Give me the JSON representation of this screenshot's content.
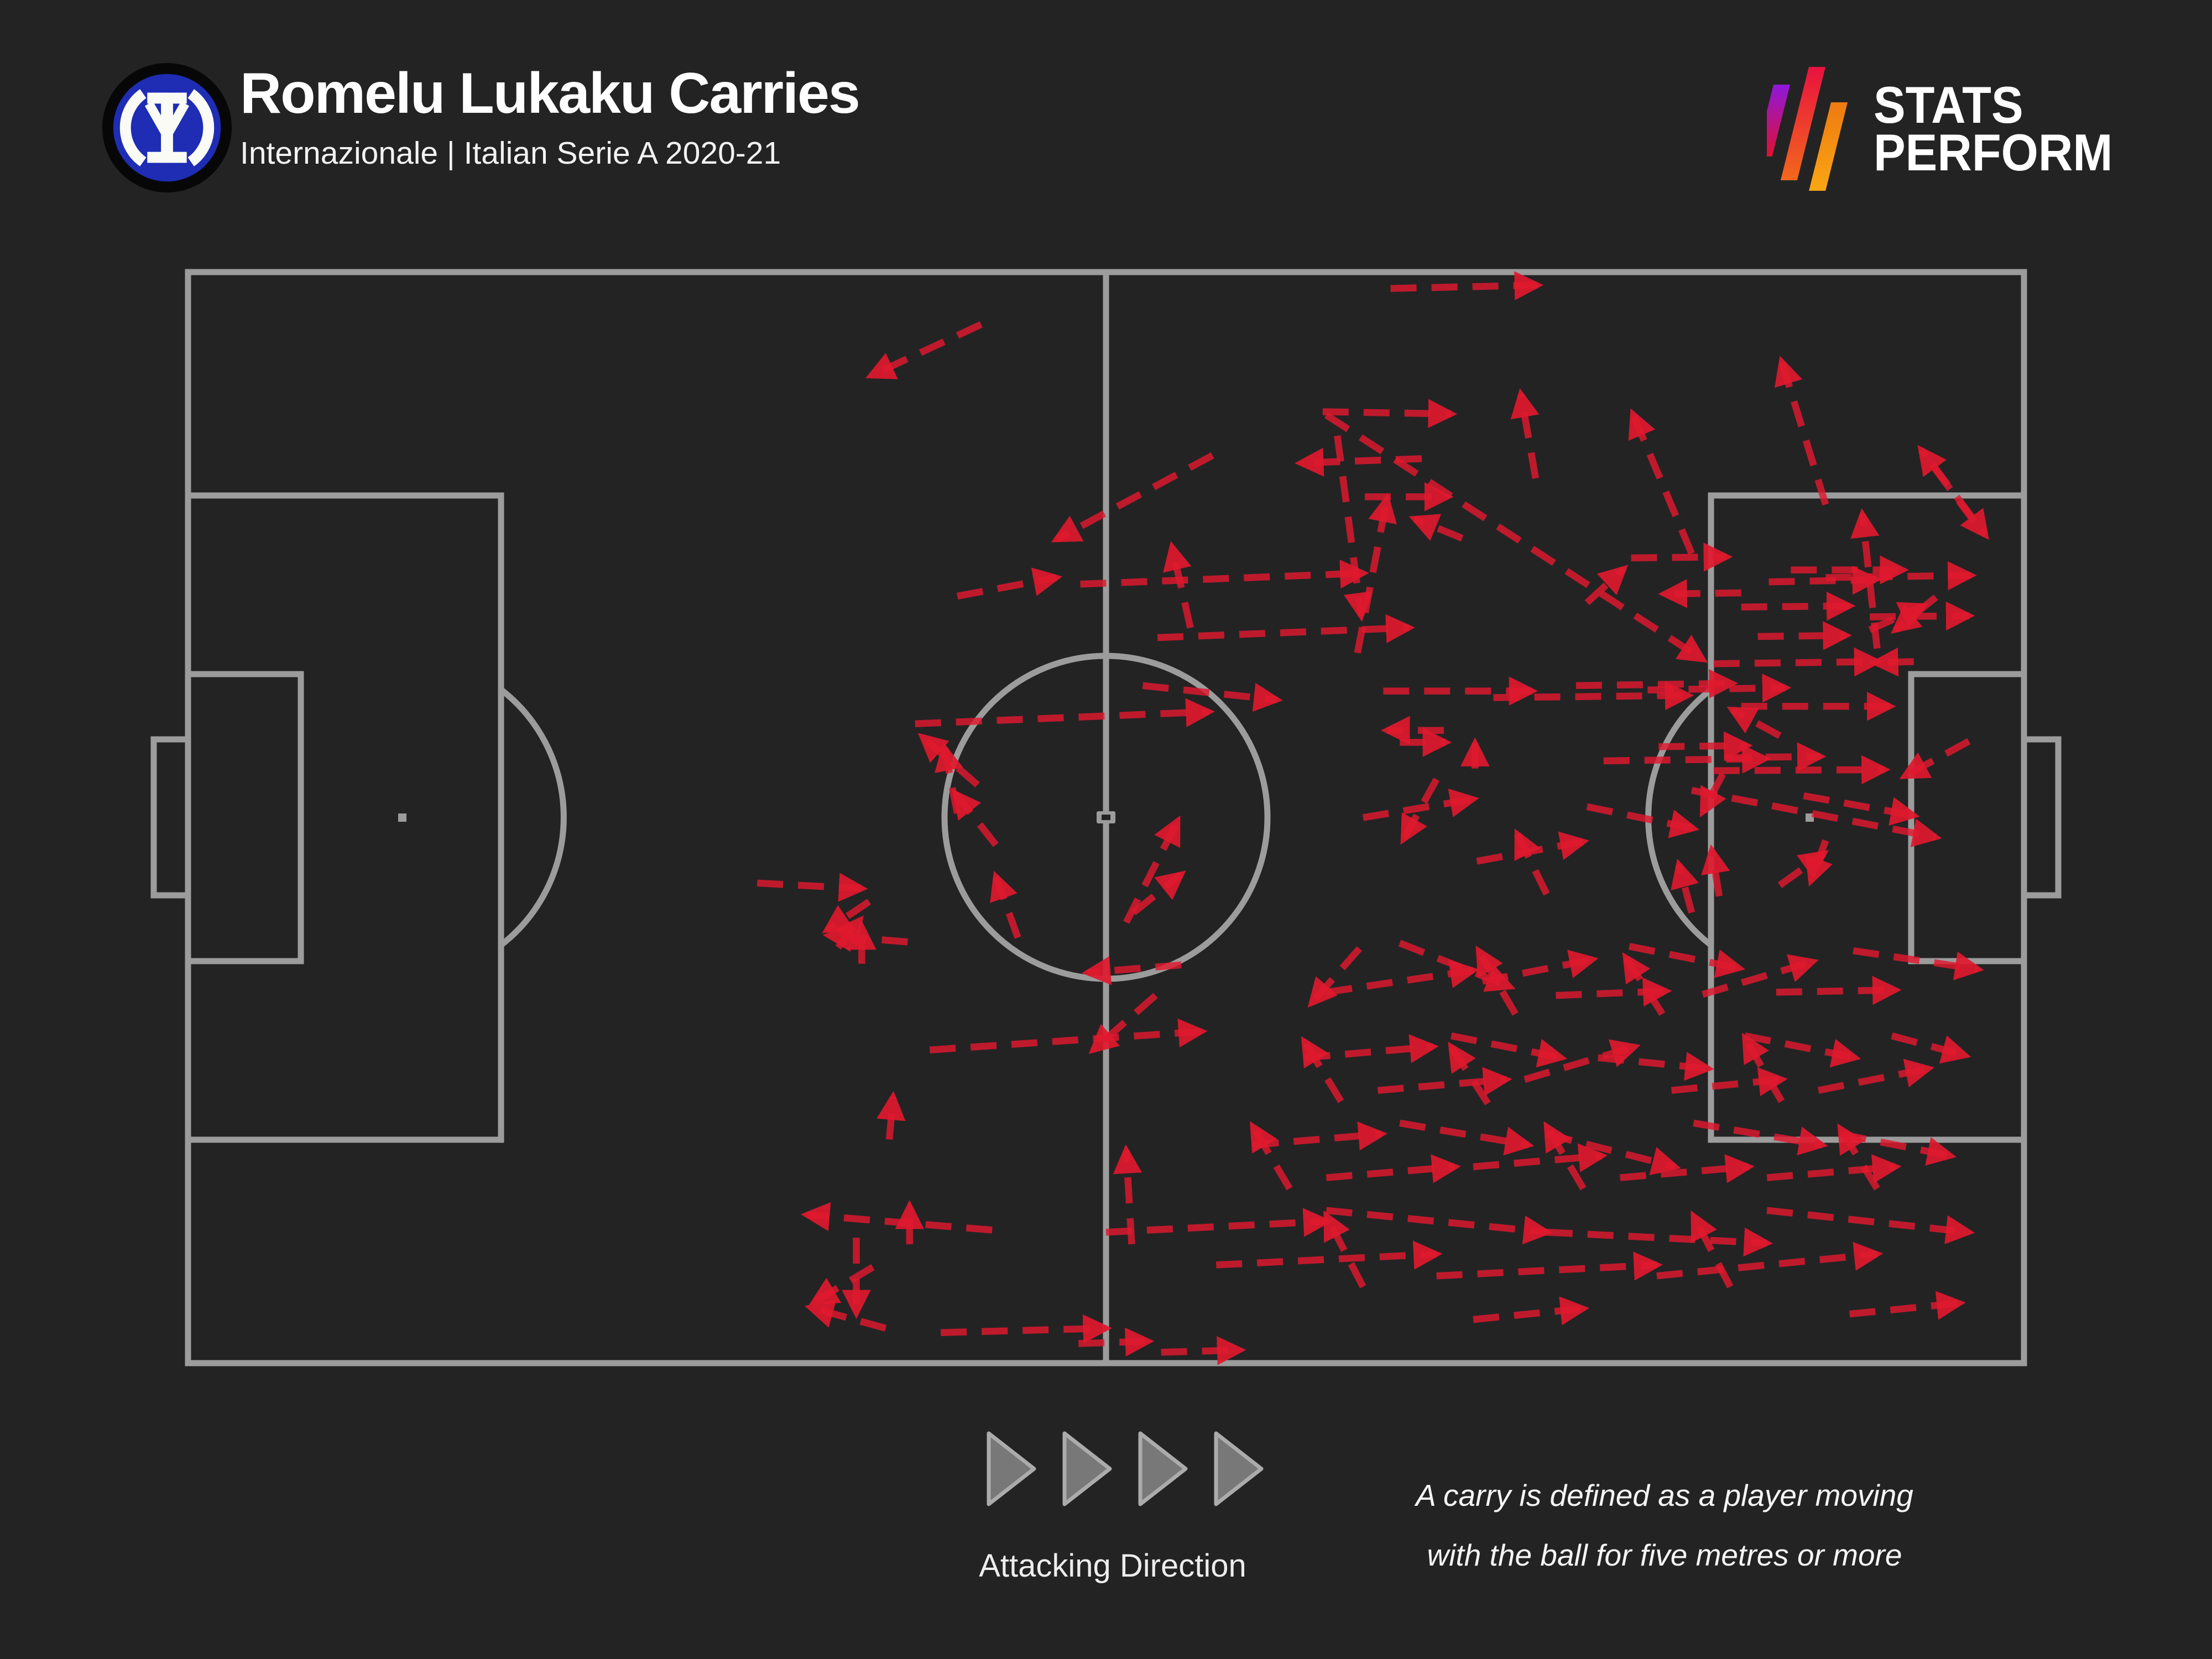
{
  "header": {
    "title": "Romelu Lukaku Carries",
    "subtitle": "Internazionale | Italian Serie A 2020-21"
  },
  "brand": {
    "line1": "STATS",
    "line2": "PERFORM"
  },
  "footer": {
    "legend_label": "Attacking Direction",
    "note_line1": "A carry is defined as a player moving",
    "note_line2": "with the ball for five metres or more"
  },
  "chart_data": {
    "type": "scatter",
    "variant": "football-pitch-carry-map",
    "title": "Romelu Lukaku Carries",
    "subtitle": "Internazionale | Italian Serie A 2020-21",
    "attacking_direction": "left-to-right",
    "definition": "A carry is defined as a player moving with the ball for five metres or more",
    "axis_note": "carries given as [x1,y1,x2,y2] in % of pitch; x:0 own goal line to 100 opposition goal line, y:0 top touchline to 100 bottom touchline, arrowhead at x2,y2",
    "colors": {
      "carry": "#e0192e",
      "pitch_line": "#9c9c9c",
      "background": "#232324",
      "legend_triangle": "#7d7d7d",
      "legend_triangle_border": "#ababab",
      "text": "#ffffff"
    },
    "carries": [
      [
        43.2,
        4.8,
        37.2,
        9.5
      ],
      [
        65.5,
        1.5,
        73.5,
        1.2
      ],
      [
        55.8,
        16.8,
        47.3,
        24.5
      ],
      [
        41.9,
        29.7,
        47.3,
        28.0
      ],
      [
        48.6,
        28.6,
        64.0,
        27.6
      ],
      [
        54.6,
        32.6,
        53.6,
        25.2
      ],
      [
        52.8,
        33.5,
        66.5,
        32.6
      ],
      [
        43.0,
        47.0,
        40.0,
        42.6
      ],
      [
        41.9,
        49.6,
        41.2,
        43.6
      ],
      [
        52.0,
        37.9,
        59.3,
        39.2
      ],
      [
        39.6,
        41.4,
        55.6,
        40.3
      ],
      [
        31.0,
        56.0,
        36.7,
        56.5
      ],
      [
        37.1,
        57.7,
        34.8,
        60.3
      ],
      [
        35.4,
        61.9,
        36.6,
        59.4
      ],
      [
        36.4,
        88.5,
        36.4,
        95.4
      ],
      [
        37.3,
        91.2,
        34.1,
        94.4
      ],
      [
        39.2,
        61.4,
        34.9,
        60.8
      ],
      [
        36.7,
        63.4,
        36.7,
        60.0
      ],
      [
        38.2,
        79.5,
        38.4,
        75.6
      ],
      [
        39.3,
        89.1,
        39.3,
        85.6
      ],
      [
        43.8,
        87.8,
        33.7,
        86.4
      ],
      [
        40.4,
        71.3,
        55.2,
        69.6
      ],
      [
        54.1,
        63.5,
        49.0,
        64.2
      ],
      [
        51.1,
        59.6,
        53.9,
        50.3
      ],
      [
        51.4,
        89.1,
        51.1,
        80.5
      ],
      [
        41.0,
        97.2,
        50.0,
        96.8
      ],
      [
        48.5,
        98.2,
        52.3,
        98.0
      ],
      [
        53.0,
        99.0,
        57.3,
        98.8
      ],
      [
        52.7,
        66.3,
        49.3,
        71.3
      ],
      [
        51.5,
        58.7,
        54.1,
        55.2
      ],
      [
        44.0,
        52.5,
        41.8,
        47.8
      ],
      [
        45.2,
        61.0,
        44.0,
        55.4
      ],
      [
        38.0,
        96.8,
        33.9,
        94.9
      ],
      [
        61.8,
        12.8,
        68.8,
        13.0
      ],
      [
        67.2,
        17.1,
        60.6,
        17.5
      ],
      [
        89.2,
        21.3,
        86.8,
        8.2
      ],
      [
        73.4,
        18.9,
        72.6,
        11.2
      ],
      [
        81.9,
        25.8,
        78.7,
        13.0
      ],
      [
        92.0,
        34.5,
        91.2,
        22.2
      ],
      [
        64.1,
        20.6,
        68.6,
        20.6
      ],
      [
        62.0,
        13.1,
        82.5,
        35.5
      ],
      [
        62.6,
        15.0,
        63.9,
        31.5
      ],
      [
        63.7,
        34.9,
        65.3,
        20.8
      ],
      [
        69.4,
        24.4,
        66.8,
        22.6
      ],
      [
        76.2,
        30.3,
        78.2,
        27.2
      ],
      [
        97.3,
        22.9,
        94.4,
        16.3
      ],
      [
        95.0,
        17.6,
        97.9,
        24.1
      ],
      [
        65.1,
        38.4,
        73.2,
        38.4
      ],
      [
        71.1,
        39.0,
        81.7,
        38.8
      ],
      [
        75.6,
        37.9,
        84.1,
        37.7
      ],
      [
        79.5,
        38.3,
        87.0,
        38.1
      ],
      [
        83.1,
        35.9,
        92.0,
        35.7
      ],
      [
        84.6,
        39.8,
        92.7,
        39.8
      ],
      [
        68.4,
        42.0,
        65.3,
        42.0
      ],
      [
        66.0,
        43.1,
        68.5,
        43.1
      ],
      [
        70.1,
        45.5,
        70.1,
        43.2
      ],
      [
        77.1,
        44.8,
        85.9,
        44.6
      ],
      [
        83.1,
        45.7,
        92.4,
        45.6
      ],
      [
        87.3,
        27.3,
        93.4,
        27.3
      ],
      [
        86.1,
        28.4,
        91.9,
        28.2
      ],
      [
        84.6,
        30.7,
        90.5,
        30.6
      ],
      [
        91.6,
        31.6,
        97.0,
        31.5
      ],
      [
        91.6,
        32.8,
        94.5,
        30.6
      ],
      [
        95.2,
        29.8,
        93.0,
        32.8
      ],
      [
        85.5,
        33.4,
        90.3,
        33.3
      ],
      [
        94.0,
        35.7,
        91.9,
        35.8
      ],
      [
        78.6,
        26.2,
        83.8,
        26.1
      ],
      [
        89.2,
        28.0,
        97.1,
        27.8
      ],
      [
        84.6,
        29.4,
        80.4,
        29.5
      ],
      [
        86.7,
        42.5,
        84.1,
        40.1
      ],
      [
        80.1,
        43.5,
        84.9,
        43.4
      ],
      [
        83.7,
        44.5,
        88.9,
        44.4
      ],
      [
        81.9,
        47.5,
        95.2,
        51.8
      ],
      [
        83.6,
        46.0,
        82.5,
        49.5
      ],
      [
        81.9,
        58.7,
        81.2,
        54.3
      ],
      [
        83.4,
        57.2,
        83.0,
        53.0
      ],
      [
        86.7,
        56.2,
        89.1,
        53.3
      ],
      [
        89.2,
        52.1,
        88.4,
        55.8
      ],
      [
        90.7,
        62.2,
        97.5,
        63.9
      ],
      [
        97.0,
        43.0,
        93.5,
        46.2
      ],
      [
        64.0,
        50.0,
        70.0,
        48.3
      ],
      [
        70.2,
        54.0,
        76.0,
        52.2
      ],
      [
        76.2,
        49.0,
        82.0,
        51.0
      ],
      [
        88.0,
        48.0,
        94.0,
        49.8
      ],
      [
        68.0,
        46.5,
        66.2,
        52.0
      ],
      [
        74.0,
        57.0,
        72.4,
        51.5
      ],
      [
        62.0,
        66.0,
        70.0,
        64.0
      ],
      [
        66.0,
        61.5,
        72.0,
        65.5
      ],
      [
        70.5,
        65.0,
        76.5,
        63.0
      ],
      [
        74.5,
        66.3,
        80.5,
        65.9
      ],
      [
        78.5,
        61.8,
        84.5,
        63.8
      ],
      [
        82.5,
        66.2,
        88.5,
        63.2
      ],
      [
        86.5,
        66.0,
        93.0,
        65.8
      ],
      [
        63.8,
        62.0,
        61.2,
        67.0
      ],
      [
        72.3,
        68.0,
        70.3,
        62.2
      ],
      [
        80.3,
        68.0,
        78.3,
        62.8
      ],
      [
        60.8,
        72.0,
        67.8,
        71.0
      ],
      [
        64.8,
        75.0,
        71.8,
        74.0
      ],
      [
        68.8,
        70.0,
        74.8,
        72.0
      ],
      [
        72.8,
        74.0,
        78.8,
        71.0
      ],
      [
        76.8,
        72.0,
        82.8,
        73.0
      ],
      [
        80.8,
        75.0,
        86.8,
        74.0
      ],
      [
        84.8,
        70.0,
        90.8,
        72.0
      ],
      [
        88.8,
        75.0,
        94.8,
        73.0
      ],
      [
        92.8,
        70.0,
        96.8,
        71.8
      ],
      [
        62.8,
        76.0,
        60.8,
        70.5
      ],
      [
        70.8,
        76.2,
        68.8,
        71.0
      ],
      [
        86.8,
        76.0,
        84.8,
        70.2
      ],
      [
        58.0,
        80.0,
        65.0,
        79.0
      ],
      [
        62.0,
        83.0,
        69.0,
        82.0
      ],
      [
        66.0,
        78.0,
        73.0,
        80.0
      ],
      [
        70.0,
        82.0,
        77.0,
        81.0
      ],
      [
        74.0,
        79.0,
        81.0,
        82.0
      ],
      [
        78.0,
        83.0,
        85.0,
        82.0
      ],
      [
        82.0,
        78.0,
        89.0,
        80.0
      ],
      [
        86.0,
        83.0,
        93.0,
        82.0
      ],
      [
        90.0,
        79.0,
        96.0,
        81.0
      ],
      [
        60.0,
        84.0,
        58.0,
        78.3
      ],
      [
        76.0,
        84.0,
        74.0,
        78.3
      ],
      [
        92.0,
        84.0,
        90.0,
        78.5
      ],
      [
        50.0,
        88.0,
        62.0,
        87.0
      ],
      [
        56.0,
        91.0,
        68.0,
        90.0
      ],
      [
        62.0,
        86.0,
        74.0,
        88.0
      ],
      [
        68.0,
        92.0,
        80.0,
        91.0
      ],
      [
        74.0,
        88.0,
        86.0,
        89.0
      ],
      [
        80.0,
        92.0,
        92.0,
        90.0
      ],
      [
        86.0,
        86.0,
        97.0,
        88.0
      ],
      [
        64.0,
        93.0,
        62.0,
        86.5
      ],
      [
        84.0,
        93.0,
        82.0,
        86.5
      ],
      [
        90.5,
        95.5,
        96.5,
        94.5
      ],
      [
        70.0,
        96.0,
        76.0,
        95.0
      ]
    ]
  }
}
